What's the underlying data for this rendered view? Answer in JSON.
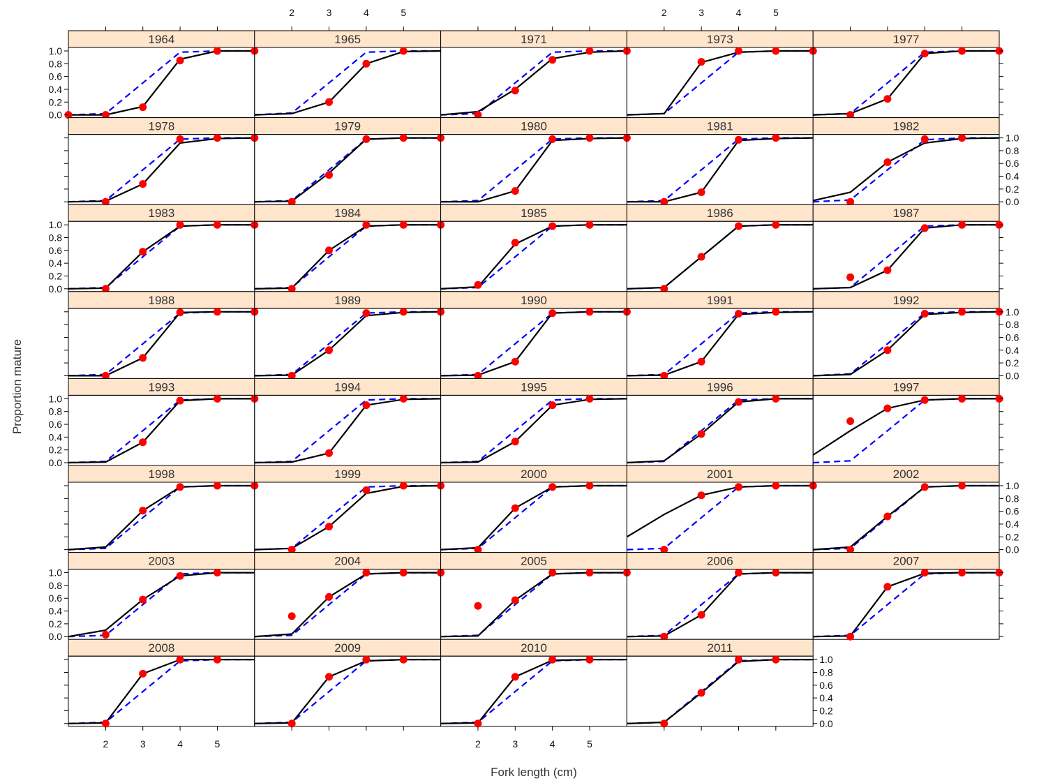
{
  "chart_data": {
    "type": "line",
    "layout": "lattice-multipanel",
    "xlabel": "Fork length (cm)",
    "ylabel": "Proportion mature",
    "x": [
      1,
      2,
      3,
      4,
      5,
      6
    ],
    "x_ticks": [
      "2",
      "3",
      "4",
      "5"
    ],
    "y_ticks": [
      "0.0",
      "0.2",
      "0.4",
      "0.6",
      "0.8",
      "1.0"
    ],
    "xlim": [
      1,
      6
    ],
    "ylim": [
      0,
      1
    ],
    "colors": {
      "strip": "#ffe5cc",
      "observed": "#ff0000",
      "fitted": "#000000",
      "reference": "#0000ff"
    },
    "panels": [
      {
        "label": "1964",
        "observed": [
          0,
          0,
          0.12,
          0.85,
          1,
          1
        ],
        "fitted": [
          0,
          0,
          0.13,
          0.87,
          1,
          1
        ],
        "reference": [
          0,
          0.02,
          0.5,
          0.98,
          1,
          1
        ]
      },
      {
        "label": "1965",
        "observed": [
          null,
          null,
          0.2,
          0.8,
          1,
          null
        ],
        "fitted": [
          0,
          0.02,
          0.2,
          0.8,
          0.99,
          1
        ],
        "reference": [
          0,
          0.03,
          0.5,
          0.98,
          1,
          1
        ]
      },
      {
        "label": "1971",
        "observed": [
          null,
          0,
          0.38,
          0.86,
          1,
          1
        ],
        "fitted": [
          0,
          0.05,
          0.4,
          0.88,
          0.98,
          1
        ],
        "reference": [
          0,
          0.02,
          0.5,
          0.98,
          1,
          1
        ]
      },
      {
        "label": "1973",
        "observed": [
          null,
          null,
          0.83,
          1,
          1,
          1
        ],
        "fitted": [
          0,
          0.02,
          0.82,
          0.98,
          1,
          1
        ],
        "reference": [
          0,
          0.02,
          0.5,
          0.98,
          1,
          1
        ]
      },
      {
        "label": "1977",
        "observed": [
          null,
          0,
          0.25,
          0.96,
          1,
          1
        ],
        "fitted": [
          0,
          0.02,
          0.25,
          0.96,
          1,
          1
        ],
        "reference": [
          0,
          0.02,
          0.5,
          0.98,
          1,
          1
        ]
      },
      {
        "label": "1978",
        "observed": [
          null,
          0,
          0.28,
          0.98,
          1,
          1
        ],
        "fitted": [
          0,
          0.01,
          0.28,
          0.92,
          0.99,
          1
        ],
        "reference": [
          0,
          0.02,
          0.5,
          0.98,
          1,
          1
        ]
      },
      {
        "label": "1979",
        "observed": [
          null,
          0,
          0.42,
          0.98,
          1,
          1
        ],
        "fitted": [
          0,
          0.01,
          0.45,
          0.98,
          1,
          1
        ],
        "reference": [
          0,
          0.02,
          0.5,
          0.98,
          1,
          1
        ]
      },
      {
        "label": "1980",
        "observed": [
          null,
          null,
          0.17,
          0.98,
          1,
          1
        ],
        "fitted": [
          0,
          0,
          0.17,
          0.96,
          0.99,
          1
        ],
        "reference": [
          0,
          0.02,
          0.5,
          0.98,
          1,
          1
        ]
      },
      {
        "label": "1981",
        "observed": [
          null,
          0,
          0.15,
          0.97,
          1,
          null
        ],
        "fitted": [
          0,
          0,
          0.15,
          0.96,
          0.99,
          1
        ],
        "reference": [
          0,
          0.02,
          0.5,
          0.98,
          1,
          1
        ]
      },
      {
        "label": "1982",
        "observed": [
          null,
          0,
          0.62,
          0.98,
          1,
          null
        ],
        "fitted": [
          0.02,
          0.15,
          0.62,
          0.92,
          0.99,
          1
        ],
        "reference": [
          0,
          0.03,
          0.5,
          0.97,
          1,
          1
        ]
      },
      {
        "label": "1983",
        "observed": [
          null,
          0,
          0.58,
          1,
          1,
          1
        ],
        "fitted": [
          0,
          0.01,
          0.58,
          0.98,
          1,
          1
        ],
        "reference": [
          0,
          0.02,
          0.5,
          0.98,
          1,
          1
        ]
      },
      {
        "label": "1984",
        "observed": [
          null,
          0,
          0.6,
          1,
          1,
          1
        ],
        "fitted": [
          0,
          0.01,
          0.6,
          0.98,
          1,
          1
        ],
        "reference": [
          0,
          0.02,
          0.5,
          0.98,
          1,
          1
        ]
      },
      {
        "label": "1985",
        "observed": [
          null,
          0.06,
          0.72,
          0.98,
          1,
          null
        ],
        "fitted": [
          0,
          0.03,
          0.7,
          0.98,
          1,
          1
        ],
        "reference": [
          0,
          0.02,
          0.5,
          0.98,
          1,
          1
        ]
      },
      {
        "label": "1986",
        "observed": [
          null,
          0,
          0.5,
          0.98,
          1,
          null
        ],
        "fitted": [
          0,
          0.02,
          0.5,
          0.98,
          1,
          1
        ],
        "reference": [
          0,
          0.02,
          0.5,
          0.98,
          1,
          1
        ]
      },
      {
        "label": "1987",
        "observed": [
          null,
          0.18,
          0.29,
          0.95,
          1,
          1
        ],
        "fitted": [
          0,
          0.02,
          0.29,
          0.95,
          1,
          1
        ],
        "reference": [
          0,
          0.02,
          0.5,
          0.98,
          1,
          1
        ]
      },
      {
        "label": "1988",
        "observed": [
          null,
          0,
          0.28,
          0.99,
          1,
          1
        ],
        "fitted": [
          0,
          0,
          0.28,
          0.99,
          1,
          1
        ],
        "reference": [
          0,
          0.02,
          0.5,
          0.98,
          1,
          1
        ]
      },
      {
        "label": "1989",
        "observed": [
          null,
          0,
          0.4,
          0.98,
          1,
          1
        ],
        "fitted": [
          0,
          0.01,
          0.4,
          0.94,
          0.99,
          1
        ],
        "reference": [
          0,
          0.02,
          0.5,
          0.98,
          1,
          1
        ]
      },
      {
        "label": "1990",
        "observed": [
          null,
          0,
          0.22,
          0.98,
          1,
          1
        ],
        "fitted": [
          0,
          0.01,
          0.22,
          0.98,
          1,
          1
        ],
        "reference": [
          0,
          0.02,
          0.5,
          0.98,
          1,
          1
        ]
      },
      {
        "label": "1991",
        "observed": [
          null,
          0,
          0.22,
          0.97,
          1,
          null
        ],
        "fitted": [
          0,
          0.01,
          0.22,
          0.96,
          0.99,
          1
        ],
        "reference": [
          0,
          0.02,
          0.5,
          0.98,
          1,
          1
        ]
      },
      {
        "label": "1992",
        "observed": [
          null,
          null,
          0.4,
          0.97,
          1,
          1
        ],
        "fitted": [
          0,
          0.02,
          0.4,
          0.96,
          0.99,
          1
        ],
        "reference": [
          0,
          0.03,
          0.5,
          0.98,
          1,
          1
        ]
      },
      {
        "label": "1993",
        "observed": [
          null,
          null,
          0.32,
          0.97,
          1,
          1
        ],
        "fitted": [
          0,
          0.01,
          0.32,
          0.97,
          1,
          1
        ],
        "reference": [
          0,
          0.02,
          0.5,
          0.98,
          1,
          1
        ]
      },
      {
        "label": "1994",
        "observed": [
          null,
          null,
          0.15,
          0.9,
          1,
          null
        ],
        "fitted": [
          0,
          0.01,
          0.15,
          0.9,
          0.99,
          1
        ],
        "reference": [
          0,
          0.02,
          0.5,
          0.98,
          1,
          1
        ]
      },
      {
        "label": "1995",
        "observed": [
          null,
          null,
          0.33,
          0.9,
          1,
          null
        ],
        "fitted": [
          0,
          0.01,
          0.33,
          0.9,
          0.99,
          1
        ],
        "reference": [
          0,
          0.02,
          0.5,
          0.98,
          1,
          1
        ]
      },
      {
        "label": "1996",
        "observed": [
          null,
          null,
          0.45,
          0.95,
          1,
          null
        ],
        "fitted": [
          0,
          0.03,
          0.45,
          0.95,
          1,
          1
        ],
        "reference": [
          0,
          0.02,
          0.5,
          0.98,
          1,
          1
        ]
      },
      {
        "label": "1997",
        "observed": [
          null,
          0.65,
          0.85,
          0.98,
          1,
          1
        ],
        "fitted": [
          0.12,
          0.5,
          0.85,
          0.98,
          1,
          1
        ],
        "reference": [
          0,
          0.03,
          0.5,
          0.98,
          1,
          1
        ]
      },
      {
        "label": "1998",
        "observed": [
          null,
          null,
          0.61,
          0.98,
          1,
          1
        ],
        "fitted": [
          0,
          0.04,
          0.61,
          0.98,
          1,
          1
        ],
        "reference": [
          0,
          0.02,
          0.5,
          0.98,
          1,
          1
        ]
      },
      {
        "label": "1999",
        "observed": [
          null,
          0,
          0.36,
          0.93,
          1,
          1
        ],
        "fitted": [
          0,
          0.02,
          0.36,
          0.88,
          0.99,
          1
        ],
        "reference": [
          0,
          0.02,
          0.5,
          0.98,
          1,
          1
        ]
      },
      {
        "label": "2000",
        "observed": [
          null,
          0,
          0.65,
          0.98,
          1,
          null
        ],
        "fitted": [
          0,
          0.03,
          0.65,
          0.98,
          1,
          1
        ],
        "reference": [
          0,
          0.02,
          0.5,
          0.98,
          1,
          1
        ]
      },
      {
        "label": "2001",
        "observed": [
          null,
          0,
          0.85,
          0.98,
          1,
          1
        ],
        "fitted": [
          0.2,
          0.55,
          0.85,
          0.98,
          1,
          1
        ],
        "reference": [
          0,
          0.02,
          0.5,
          0.98,
          1,
          1
        ]
      },
      {
        "label": "2002",
        "observed": [
          null,
          0,
          0.52,
          0.98,
          1,
          null
        ],
        "fitted": [
          0,
          0.04,
          0.52,
          0.98,
          1,
          1
        ],
        "reference": [
          0,
          0.02,
          0.5,
          0.98,
          1,
          1
        ]
      },
      {
        "label": "2003",
        "observed": [
          null,
          0.03,
          0.58,
          0.95,
          1,
          null
        ],
        "fitted": [
          0,
          0.1,
          0.58,
          0.95,
          1,
          1
        ],
        "reference": [
          0,
          0.02,
          0.5,
          0.98,
          1,
          1
        ]
      },
      {
        "label": "2004",
        "observed": [
          null,
          0.32,
          0.62,
          1,
          1,
          1
        ],
        "fitted": [
          0,
          0.04,
          0.62,
          0.98,
          1,
          1
        ],
        "reference": [
          0,
          0.02,
          0.5,
          0.98,
          1,
          1
        ]
      },
      {
        "label": "2005",
        "observed": [
          null,
          0.48,
          0.57,
          1,
          1,
          1
        ],
        "fitted": [
          0,
          0.01,
          0.57,
          0.98,
          1,
          1
        ],
        "reference": [
          0,
          0.02,
          0.5,
          0.98,
          1,
          1
        ]
      },
      {
        "label": "2006",
        "observed": [
          null,
          0,
          0.34,
          1,
          1,
          null
        ],
        "fitted": [
          0,
          0.01,
          0.34,
          0.98,
          1,
          1
        ],
        "reference": [
          0,
          0.02,
          0.5,
          0.98,
          1,
          1
        ]
      },
      {
        "label": "2007",
        "observed": [
          null,
          0,
          0.78,
          1,
          1,
          1
        ],
        "fitted": [
          0,
          0.01,
          0.78,
          0.99,
          1,
          1
        ],
        "reference": [
          0,
          0.02,
          0.5,
          0.98,
          1,
          1
        ]
      },
      {
        "label": "2008",
        "observed": [
          null,
          0,
          0.78,
          1,
          1,
          null
        ],
        "fitted": [
          0,
          0.01,
          0.78,
          1,
          1,
          1
        ],
        "reference": [
          0,
          0.02,
          0.5,
          0.98,
          1,
          1
        ]
      },
      {
        "label": "2009",
        "observed": [
          null,
          0,
          0.73,
          1,
          1,
          null
        ],
        "fitted": [
          0,
          0.01,
          0.73,
          0.98,
          1,
          1
        ],
        "reference": [
          0,
          0.02,
          0.5,
          0.98,
          1,
          1
        ]
      },
      {
        "label": "2010",
        "observed": [
          null,
          0,
          0.73,
          1,
          1,
          null
        ],
        "fitted": [
          0,
          0.01,
          0.73,
          0.99,
          1,
          1
        ],
        "reference": [
          0,
          0.02,
          0.5,
          0.98,
          1,
          1
        ]
      },
      {
        "label": "2011",
        "observed": [
          null,
          0,
          0.48,
          1,
          1,
          null
        ],
        "fitted": [
          0,
          0.02,
          0.48,
          0.97,
          1,
          1
        ],
        "reference": [
          0,
          0.02,
          0.5,
          0.98,
          1,
          1
        ]
      }
    ]
  }
}
